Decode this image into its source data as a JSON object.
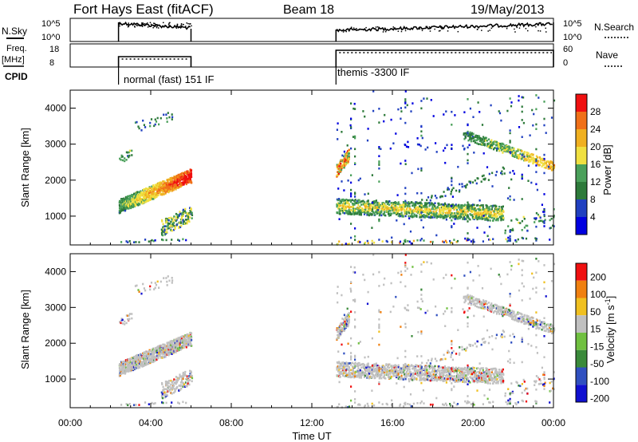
{
  "header": {
    "station": "Fort Hays East (fitACF)",
    "beam": "Beam 18",
    "date": "19/May/2013"
  },
  "chart_data": [
    {
      "type": "line",
      "panel": "noise",
      "left_label": "N.Sky",
      "right_label": "N.Search",
      "left_ticks": [
        "10^5",
        "10^0"
      ],
      "right_ticks": [
        "10^5",
        "10^0"
      ],
      "segments": [
        [
          2.4,
          6.0
        ],
        [
          13.2,
          24.0
        ]
      ]
    },
    {
      "type": "line",
      "panel": "frequency",
      "left_label": "Freq.",
      "left_unit": "[MHz]",
      "left_ticks": [
        18,
        8
      ],
      "right_label": "Nave",
      "right_ticks": [
        60,
        0
      ],
      "segments": [
        [
          2.4,
          6.0
        ],
        [
          13.2,
          24.0
        ]
      ]
    },
    {
      "type": "table",
      "panel": "cpid",
      "label": "CPID",
      "modes": [
        {
          "start": 2.4,
          "label": "normal (fast) 151 IF"
        },
        {
          "start": 13.2,
          "label": "themis -3300 IF"
        }
      ]
    },
    {
      "type": "heatmap",
      "panel": "power",
      "ylabel": "Slant Range [km]",
      "yticks": [
        1000,
        2000,
        3000,
        4000
      ],
      "ylim": [
        200,
        4500
      ],
      "xlim": [
        0,
        24
      ],
      "colorbar_label": "Power [dB]",
      "colorbar_ticks": [
        4,
        8,
        12,
        16,
        20,
        24,
        28
      ],
      "colors": [
        "#0000e0",
        "#2040c0",
        "#2d7a3a",
        "#4aa05a",
        "#f0e040",
        "#f0b020",
        "#f07018",
        "#f01010"
      ]
    },
    {
      "type": "heatmap",
      "panel": "velocity",
      "ylabel": "Slant Range [km]",
      "yticks": [
        1000,
        2000,
        3000,
        4000
      ],
      "ylim": [
        200,
        4500
      ],
      "xlim": [
        0,
        24
      ],
      "colorbar_label": "Velocity [m s",
      "colorbar_unit_sup": "-1",
      "colorbar_ticks": [
        200,
        100,
        50,
        15,
        -15,
        -50,
        -100,
        -200
      ],
      "colors": [
        "#1010d0",
        "#3050c0",
        "#3a8a3a",
        "#70c040",
        "#c0c0c0",
        "#f0c020",
        "#f08010",
        "#f01010"
      ]
    }
  ],
  "xaxis": {
    "label": "Time UT",
    "ticks": [
      "00:00",
      "04:00",
      "08:00",
      "12:00",
      "16:00",
      "20:00",
      "00:00"
    ]
  }
}
